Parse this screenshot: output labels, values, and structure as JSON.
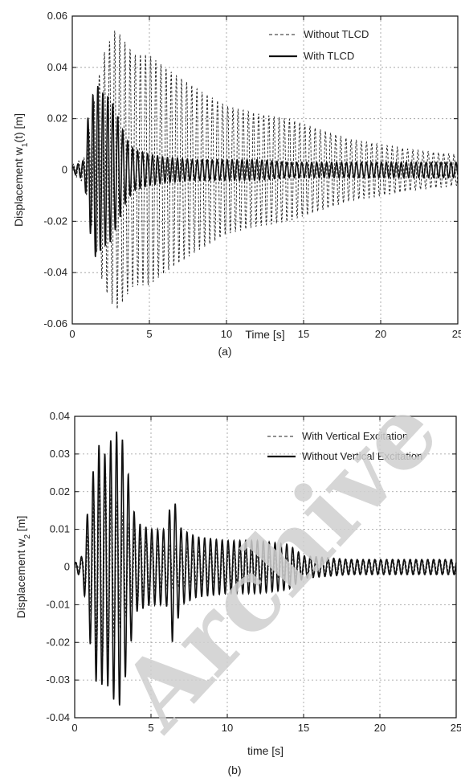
{
  "chart_data": [
    {
      "type": "line",
      "panel": "(a)",
      "xlabel": "Time [s]",
      "ylabel": "Displacement w1(t) [m]",
      "xlim": [
        0,
        25
      ],
      "ylim": [
        -0.06,
        0.06
      ],
      "xticks": [
        0,
        5,
        10,
        15,
        20,
        25
      ],
      "yticks": [
        -0.06,
        -0.04,
        -0.02,
        0,
        0.02,
        0.04,
        0.06
      ],
      "ytick_labels": [
        "-0.06",
        "-0.04",
        "-0.02",
        "0",
        "0.02",
        "0.04",
        "0.06"
      ],
      "grid": true,
      "legend_position": "top-right",
      "series": [
        {
          "name": "Without TLCD",
          "style": "dashed",
          "color": "#222222",
          "envelope_x": [
            0,
            0.8,
            1.2,
            2.0,
            2.8,
            3.2,
            4.0,
            5.0,
            6.0,
            8.0,
            10.0,
            12.0,
            14.0,
            16.0,
            18.0,
            20.0,
            22.0,
            25.0
          ],
          "envelope_y": [
            0.002,
            0.005,
            0.02,
            0.045,
            0.055,
            0.052,
            0.045,
            0.045,
            0.04,
            0.032,
            0.025,
            0.022,
            0.02,
            0.016,
            0.012,
            0.01,
            0.008,
            0.006
          ],
          "frequency_hz": 3.0
        },
        {
          "name": "With TLCD",
          "style": "solid",
          "color": "#111111",
          "envelope_x": [
            0,
            0.8,
            1.0,
            1.5,
            2.0,
            2.5,
            3.0,
            3.5,
            4.0,
            5.0,
            6.0,
            8.0,
            10.0,
            12.0,
            14.0,
            16.0,
            20.0,
            25.0
          ],
          "envelope_y": [
            0.001,
            0.004,
            0.02,
            0.034,
            0.03,
            0.028,
            0.02,
            0.012,
            0.008,
            0.006,
            0.005,
            0.004,
            0.004,
            0.004,
            0.003,
            0.003,
            0.003,
            0.003
          ],
          "frequency_hz": 3.1
        }
      ]
    },
    {
      "type": "line",
      "panel": "(b)",
      "xlabel": "time [s]",
      "ylabel": "Displacement w2 [m]",
      "xlim": [
        0,
        25
      ],
      "ylim": [
        -0.04,
        0.04
      ],
      "xticks": [
        0,
        5,
        10,
        15,
        20,
        25
      ],
      "yticks": [
        -0.04,
        -0.03,
        -0.02,
        -0.01,
        0,
        0.01,
        0.02,
        0.03,
        0.04
      ],
      "ytick_labels": [
        "-0.04",
        "-0.03",
        "-0.02",
        "-0.01",
        "0",
        "0.01",
        "0.02",
        "0.03",
        "0.04"
      ],
      "grid": true,
      "legend_position": "top-right",
      "series": [
        {
          "name": "With Vertical Excitation",
          "style": "dashed",
          "color": "#222222",
          "envelope_x": [
            0,
            0.5,
            1.0,
            1.5,
            2.0,
            2.5,
            3.0,
            3.5,
            4.0,
            5.0,
            6.0,
            8.0,
            10.0,
            12.0,
            14.0,
            16.0,
            20.0,
            25.0
          ],
          "envelope_y": [
            0.001,
            0.002,
            0.012,
            0.024,
            0.026,
            0.02,
            0.016,
            0.012,
            0.01,
            0.007,
            0.006,
            0.005,
            0.005,
            0.004,
            0.003,
            0.002,
            0.002,
            0.002
          ],
          "frequency_hz": 2.6
        },
        {
          "name": "Without Vertical Excitation",
          "style": "solid",
          "color": "#111111",
          "envelope_x": [
            0,
            0.5,
            1.0,
            1.5,
            2.0,
            2.5,
            3.0,
            3.5,
            4.0,
            5.0,
            6.0,
            6.4,
            7.0,
            8.0,
            10.0,
            12.0,
            14.0,
            15.0,
            18.0,
            25.0
          ],
          "envelope_y": [
            0.001,
            0.003,
            0.02,
            0.033,
            0.03,
            0.035,
            0.037,
            0.025,
            0.012,
            0.01,
            0.01,
            0.02,
            0.01,
            0.008,
            0.007,
            0.007,
            0.006,
            0.003,
            0.002,
            0.002
          ],
          "frequency_hz": 2.6
        }
      ]
    }
  ],
  "captions": [
    "(a)",
    "(b)"
  ],
  "watermark": "Archive"
}
